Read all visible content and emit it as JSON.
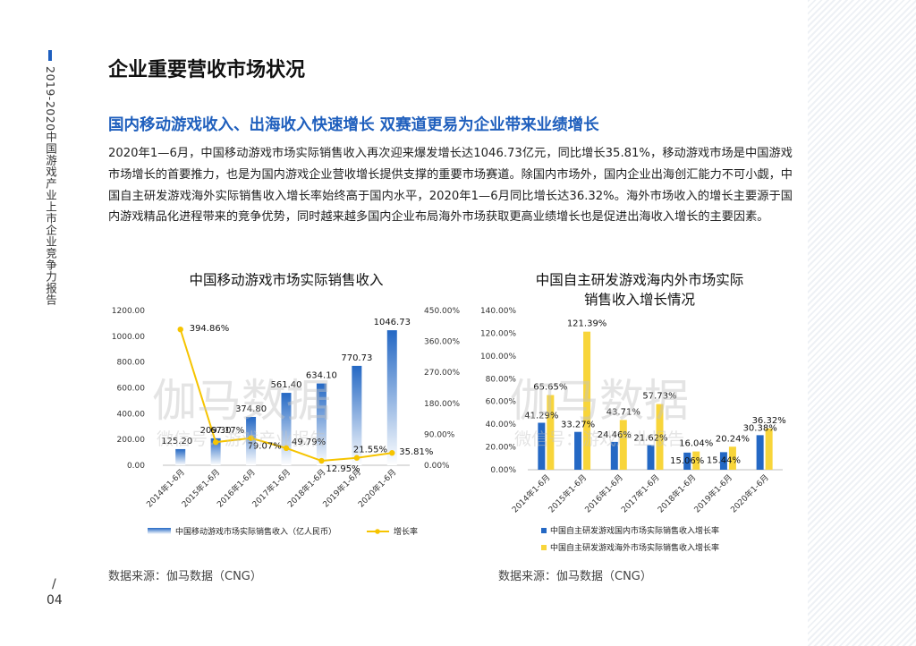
{
  "sidebar": {
    "title": "2019-2020中国游戏产业上市企业竞争力报告",
    "page_slash": "/",
    "page_number": "04"
  },
  "heading": "企业重要营收市场状况",
  "subheading": "国内移动游戏收入、出海收入快速增长  双赛道更易为企业带来业绩增长",
  "paragraph": "2020年1—6月，中国移动游戏市场实际销售收入再次迎来爆发增长达1046.73亿元，同比增长35.81%，移动游戏市场是中国游戏市场增长的首要推力，也是为国内游戏企业营收增长提供支撑的重要市场赛道。除国内市场外，国内企业出海创汇能力不可小觑，中国自主研发游戏海外实际销售收入增长率始终高于国内水平，2020年1—6月同比增长达36.32%。海外市场收入的增长主要源于国内游戏精品化进程带来的竞争优势，同时越来越多国内企业布局海外市场获取更高业绩增长也是促进出海收入增长的主要因素。",
  "watermark": {
    "main": "伽马数据",
    "sub": "微信号：游戏产业报告"
  },
  "chart_data": [
    {
      "type": "bar",
      "title": "中国移动游戏市场实际销售收入",
      "categories": [
        "2014年1-6月",
        "2015年1-6月",
        "2016年1-6月",
        "2017年1-6月",
        "2018年1-6月",
        "2019年1-6月",
        "2020年1-6月"
      ],
      "series": [
        {
          "name": "中国移动游戏市场实际销售收入（亿人民币）",
          "kind": "bar",
          "axis": "left",
          "color": "#2468c4",
          "values": [
            125.2,
            209.3,
            374.8,
            561.4,
            634.1,
            770.73,
            1046.73
          ],
          "labels": [
            "125.20",
            "209.30",
            "374.80",
            "561.40",
            "634.10",
            "770.73",
            "1046.73"
          ]
        },
        {
          "name": "增长率",
          "kind": "line",
          "axis": "right",
          "color": "#f6c400",
          "values": [
            394.86,
            67.17,
            79.07,
            49.79,
            12.95,
            21.55,
            35.81
          ],
          "labels": [
            "394.86%",
            "67.17%",
            "79.07%",
            "49.79%",
            "12.95%",
            "21.55%",
            "35.81%"
          ]
        }
      ],
      "y_left": {
        "min": 0,
        "max": 1200,
        "ticks": [
          "0.00",
          "200.00",
          "400.00",
          "600.00",
          "800.00",
          "1000.00",
          "1200.00"
        ]
      },
      "y_right": {
        "min": 0,
        "max": 450,
        "ticks": [
          "0.00%",
          "90.00%",
          "180.00%",
          "270.00%",
          "360.00%",
          "450.00%"
        ]
      },
      "legend": "bottom",
      "grid": false,
      "source": "数据来源：伽马数据（CNG）"
    },
    {
      "type": "bar",
      "title": "中国自主研发游戏海内外市场实际销售收入增长情况",
      "title_lines": [
        "中国自主研发游戏海内外市场实际",
        "销售收入增长情况"
      ],
      "categories": [
        "2014年1-6月",
        "2015年1-6月",
        "2016年1-6月",
        "2017年1-6月",
        "2018年1-6月",
        "2019年1-6月",
        "2020年1-6月"
      ],
      "series": [
        {
          "name": "中国自主研发游戏国内市场实际销售收入增长率",
          "color": "#2468c4",
          "values": [
            41.29,
            33.27,
            24.46,
            21.62,
            15.06,
            15.44,
            30.38
          ],
          "labels": [
            "41.29%",
            "33.27%",
            "24.46%",
            "21.62%",
            "15.06%",
            "15.44%",
            "30.38%"
          ]
        },
        {
          "name": "中国自主研发游戏海外市场实际销售收入增长率",
          "color": "#f8d53a",
          "values": [
            65.65,
            121.39,
            43.71,
            57.73,
            16.04,
            20.24,
            36.32
          ],
          "labels": [
            "65.65%",
            "121.39%",
            "43.71%",
            "57.73%",
            "16.04%",
            "20.24%",
            "36.32%"
          ]
        }
      ],
      "y": {
        "min": 0,
        "max": 140,
        "ticks": [
          "0.00%",
          "20.00%",
          "40.00%",
          "60.00%",
          "80.00%",
          "100.00%",
          "120.00%",
          "140.00%"
        ]
      },
      "legend": "bottom",
      "grid": false,
      "source": "数据来源：伽马数据（CNG）"
    }
  ]
}
